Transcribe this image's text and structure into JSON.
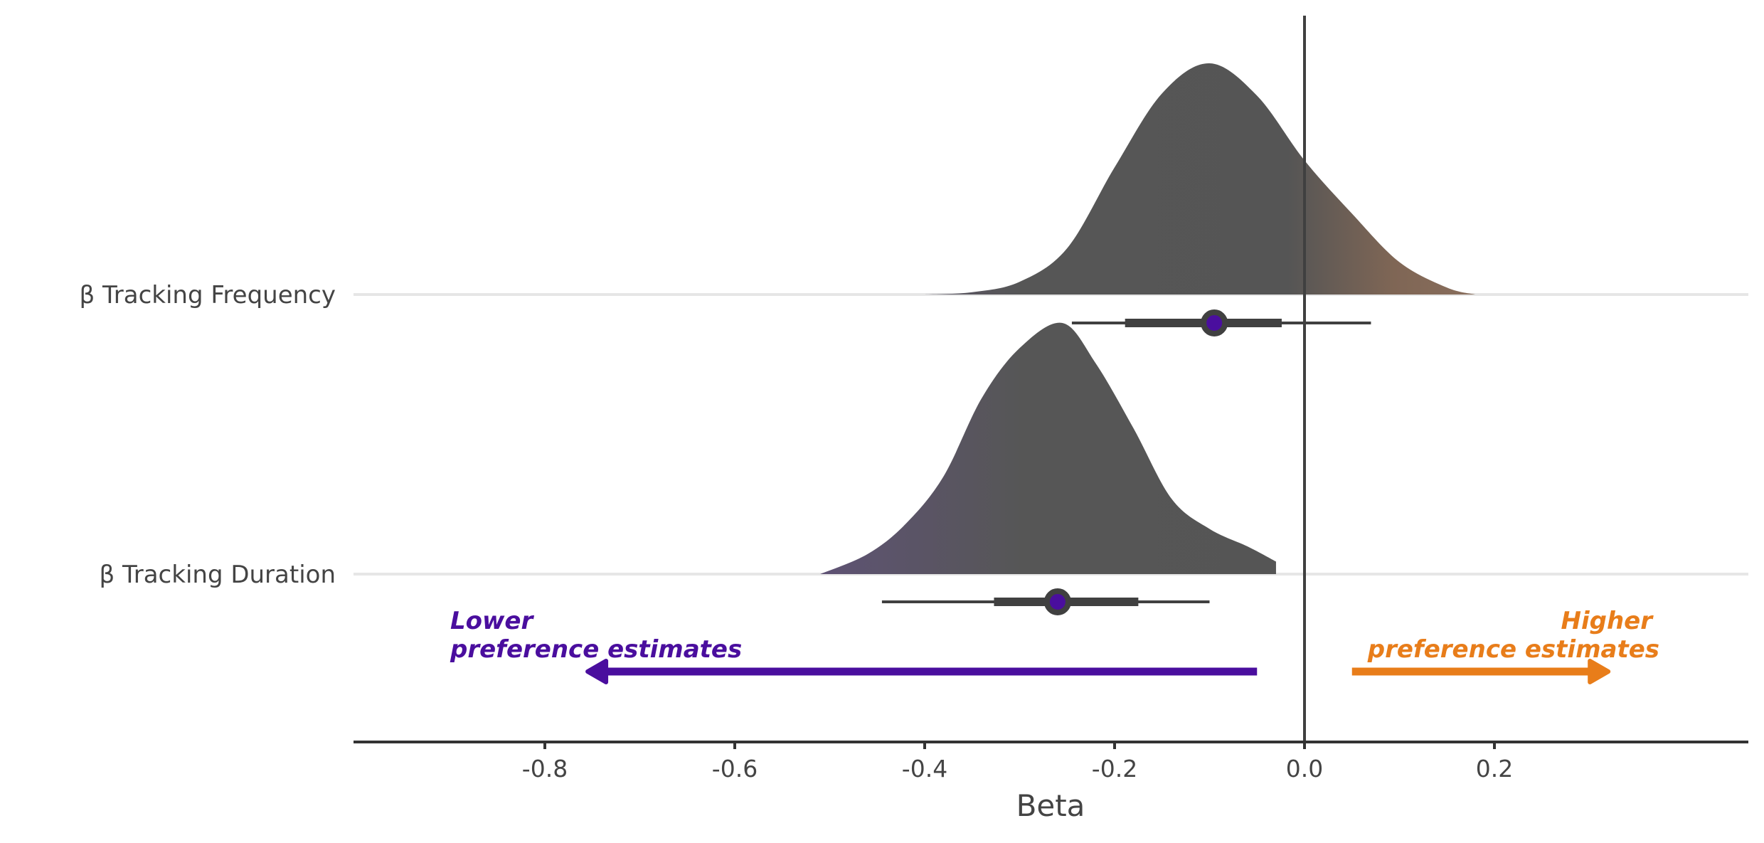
{
  "chart_data": {
    "type": "density",
    "xlabel": "Beta",
    "ylabel": "",
    "xlim": [
      -0.8,
      0.37
    ],
    "xticks": [
      -0.8,
      -0.6,
      -0.4,
      -0.2,
      0.0,
      0.2
    ],
    "xtick_labels": [
      "-0.8",
      "-0.6",
      "-0.4",
      "-0.2",
      "0.0",
      "0.2"
    ],
    "reference_line_x": 0.0,
    "grid": "horizontal baselines only",
    "series": [
      {
        "name": "β Tracking Frequency",
        "point_estimate": -0.095,
        "interval_66": [
          -0.189,
          -0.024
        ],
        "interval_95": [
          -0.245,
          0.07
        ],
        "density_range": [
          -0.4,
          0.18
        ],
        "density_peak_x": -0.1,
        "density_curve": [
          [
            -0.4,
            0.0
          ],
          [
            -0.35,
            0.01
          ],
          [
            -0.3,
            0.055
          ],
          [
            -0.25,
            0.2
          ],
          [
            -0.2,
            0.55
          ],
          [
            -0.15,
            0.87
          ],
          [
            -0.1,
            1.0
          ],
          [
            -0.05,
            0.86
          ],
          [
            0.0,
            0.58
          ],
          [
            0.05,
            0.35
          ],
          [
            0.1,
            0.14
          ],
          [
            0.15,
            0.03
          ],
          [
            0.18,
            0.0
          ]
        ]
      },
      {
        "name": "β Tracking Duration",
        "point_estimate": -0.26,
        "interval_66": [
          -0.327,
          -0.175
        ],
        "interval_95": [
          -0.445,
          -0.1
        ],
        "density_range": [
          -0.51,
          -0.03
        ],
        "density_peak_x": -0.255,
        "density_curve": [
          [
            -0.51,
            0.0
          ],
          [
            -0.46,
            0.08
          ],
          [
            -0.42,
            0.2
          ],
          [
            -0.38,
            0.39
          ],
          [
            -0.34,
            0.7
          ],
          [
            -0.3,
            0.9
          ],
          [
            -0.255,
            1.0
          ],
          [
            -0.22,
            0.84
          ],
          [
            -0.18,
            0.58
          ],
          [
            -0.14,
            0.3
          ],
          [
            -0.1,
            0.18
          ],
          [
            -0.06,
            0.11
          ],
          [
            -0.03,
            0.05
          ]
        ]
      }
    ],
    "annotations": [
      {
        "line1": "Lower",
        "line2": "preference estimates",
        "direction": "left",
        "x_from": -0.05,
        "x_to": -0.755,
        "color": "#4a0e9e"
      },
      {
        "line1": "Higher",
        "line2": "preference estimates",
        "direction": "right",
        "x_from": 0.05,
        "x_to": 0.32,
        "color": "#e87d1a"
      }
    ],
    "colors": {
      "low": "#6a35a8",
      "mid": "#555555",
      "high": "#8b6a55",
      "point_fill": "#4a0e9e",
      "interval": "#404040",
      "axis": "#333333",
      "baseline": "#e6e6e6",
      "label_text": "#444444",
      "lower_text": "#4a0e9e",
      "higher_text": "#e87d1a"
    }
  }
}
